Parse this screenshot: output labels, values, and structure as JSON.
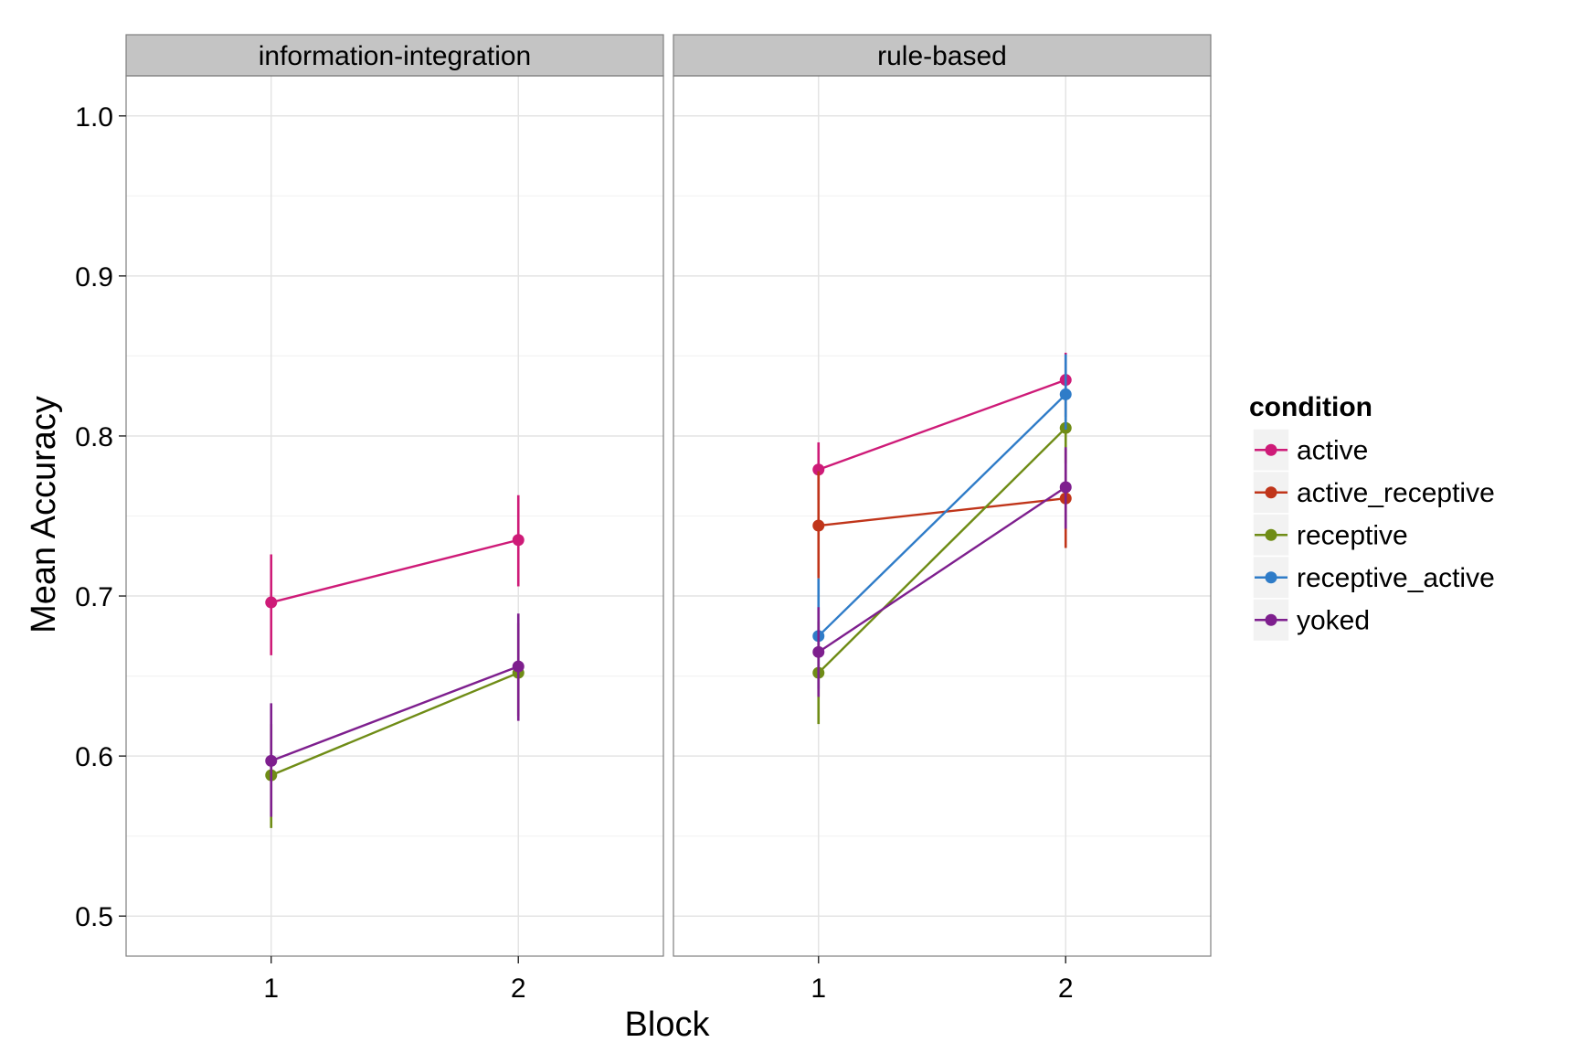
{
  "chart_data": {
    "type": "line",
    "xlabel": "Block",
    "ylabel": "Mean Accuracy",
    "ylim": [
      0.475,
      1.025
    ],
    "y_ticks": [
      "0.5",
      "0.6",
      "0.7",
      "0.8",
      "0.9",
      "1.0"
    ],
    "x_categories": [
      "1",
      "2"
    ],
    "grid": "on",
    "legend_position": "right",
    "legend": {
      "title": "condition",
      "entries": [
        {
          "name": "active",
          "color": "#CE1B78"
        },
        {
          "name": "active_receptive",
          "color": "#C0351A"
        },
        {
          "name": "receptive",
          "color": "#6F8C16"
        },
        {
          "name": "receptive_active",
          "color": "#2F7CC8"
        },
        {
          "name": "yoked",
          "color": "#7E1F8E"
        }
      ]
    },
    "panels": [
      {
        "title": "information-integration",
        "series": [
          {
            "name": "active",
            "x": [
              "1",
              "2"
            ],
            "y": [
              0.696,
              0.735
            ],
            "err_low": [
              0.663,
              0.706
            ],
            "err_high": [
              0.726,
              0.763
            ]
          },
          {
            "name": "receptive",
            "x": [
              "1",
              "2"
            ],
            "y": [
              0.588,
              0.652
            ],
            "err_low": [
              0.555,
              0.625
            ],
            "err_high": [
              0.62,
              0.683
            ]
          },
          {
            "name": "yoked",
            "x": [
              "1",
              "2"
            ],
            "y": [
              0.597,
              0.656
            ],
            "err_low": [
              0.562,
              0.622
            ],
            "err_high": [
              0.633,
              0.689
            ]
          }
        ]
      },
      {
        "title": "rule-based",
        "series": [
          {
            "name": "active",
            "x": [
              "1",
              "2"
            ],
            "y": [
              0.779,
              0.835
            ],
            "err_low": [
              0.76,
              0.812
            ],
            "err_high": [
              0.796,
              0.852
            ]
          },
          {
            "name": "active_receptive",
            "x": [
              "1",
              "2"
            ],
            "y": [
              0.744,
              0.761
            ],
            "err_low": [
              0.711,
              0.73
            ],
            "err_high": [
              0.778,
              0.792
            ]
          },
          {
            "name": "receptive",
            "x": [
              "1",
              "2"
            ],
            "y": [
              0.652,
              0.805
            ],
            "err_low": [
              0.62,
              0.783
            ],
            "err_high": [
              0.684,
              0.826
            ]
          },
          {
            "name": "receptive_active",
            "x": [
              "1",
              "2"
            ],
            "y": [
              0.675,
              0.826
            ],
            "err_low": [
              0.642,
              0.804
            ],
            "err_high": [
              0.711,
              0.851
            ]
          },
          {
            "name": "yoked",
            "x": [
              "1",
              "2"
            ],
            "y": [
              0.665,
              0.768
            ],
            "err_low": [
              0.637,
              0.742
            ],
            "err_high": [
              0.693,
              0.793
            ]
          }
        ]
      }
    ]
  }
}
